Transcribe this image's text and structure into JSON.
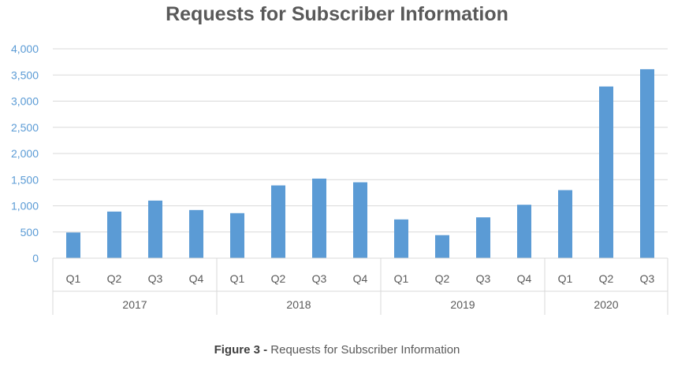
{
  "chart_data": {
    "type": "bar",
    "title": "Requests for Subscriber Information",
    "xlabel": "",
    "ylabel": "",
    "ylim": [
      0,
      4000
    ],
    "yticks": [
      "0",
      "500",
      "1,000",
      "1,500",
      "2,000",
      "2,500",
      "3,000",
      "3,500",
      "4,000"
    ],
    "grid": true,
    "legend": "none",
    "bar_color": "#5b9bd5",
    "groups": [
      {
        "label": "2017",
        "categories": [
          "Q1",
          "Q2",
          "Q3",
          "Q4"
        ]
      },
      {
        "label": "2018",
        "categories": [
          "Q1",
          "Q2",
          "Q3",
          "Q4"
        ]
      },
      {
        "label": "2019",
        "categories": [
          "Q1",
          "Q2",
          "Q3",
          "Q4"
        ]
      },
      {
        "label": "2020",
        "categories": [
          "Q1",
          "Q2",
          "Q3"
        ]
      }
    ],
    "categories": [
      "2017 Q1",
      "2017 Q2",
      "2017 Q3",
      "2017 Q4",
      "2018 Q1",
      "2018 Q2",
      "2018 Q3",
      "2018 Q4",
      "2019 Q1",
      "2019 Q2",
      "2019 Q3",
      "2019 Q4",
      "2020 Q1",
      "2020 Q2",
      "2020 Q3"
    ],
    "values": [
      490,
      890,
      1100,
      920,
      860,
      1390,
      1520,
      1450,
      740,
      440,
      780,
      1020,
      1300,
      3280,
      3610
    ]
  },
  "caption": {
    "figure_label": "Figure 3",
    "separator": "-",
    "text": "Requests for Subscriber Information"
  }
}
